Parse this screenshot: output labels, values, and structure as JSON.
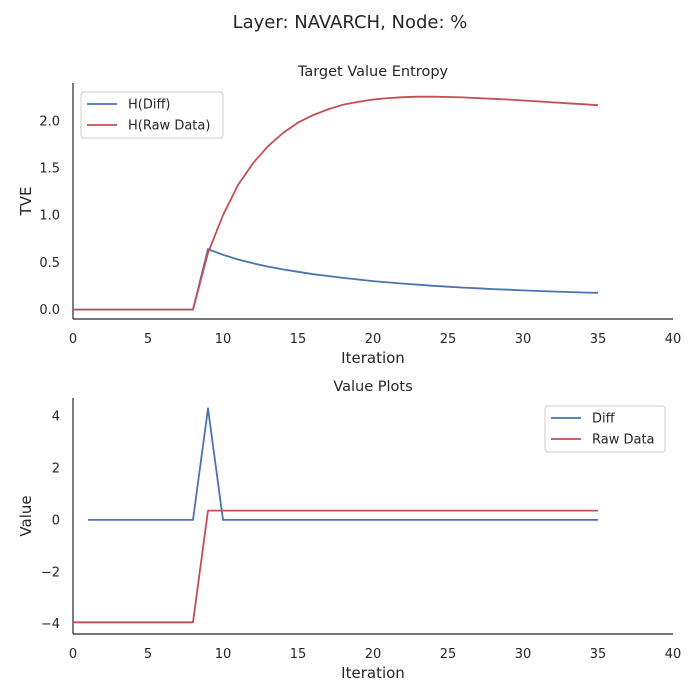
{
  "figure": {
    "suptitle": "Layer: NAVARCH, Node: %"
  },
  "colors": {
    "blue": "#4c72b0",
    "red": "#c44e52",
    "axis": "#262626"
  },
  "chart_data": [
    {
      "type": "line",
      "title": "Target Value Entropy",
      "xlabel": "Iteration",
      "ylabel": "TVE",
      "xlim": [
        0,
        40
      ],
      "ylim": [
        -0.1,
        2.4
      ],
      "xticks": [
        0,
        5,
        10,
        15,
        20,
        25,
        30,
        35,
        40
      ],
      "yticks": [
        0.0,
        0.5,
        1.0,
        1.5,
        2.0
      ],
      "ytick_labels": [
        "0.0",
        "0.5",
        "1.0",
        "1.5",
        "2.0"
      ],
      "grid": false,
      "legend_position": "top-left",
      "x": [
        0,
        1,
        2,
        3,
        4,
        5,
        6,
        7,
        8,
        9,
        10,
        11,
        12,
        13,
        14,
        15,
        16,
        17,
        18,
        19,
        20,
        21,
        22,
        23,
        24,
        25,
        26,
        27,
        28,
        29,
        30,
        31,
        32,
        33,
        34,
        35
      ],
      "series": [
        {
          "name": "H(Diff)",
          "color": "#4c72b0",
          "values": [
            0,
            0,
            0,
            0,
            0,
            0,
            0,
            0,
            0,
            0.64,
            0.58,
            0.53,
            0.49,
            0.455,
            0.425,
            0.4,
            0.375,
            0.355,
            0.335,
            0.318,
            0.302,
            0.288,
            0.275,
            0.263,
            0.252,
            0.242,
            0.233,
            0.225,
            0.217,
            0.21,
            0.203,
            0.197,
            0.191,
            0.186,
            0.181,
            0.176
          ]
        },
        {
          "name": "H(Raw Data)",
          "color": "#c44e52",
          "values": [
            0,
            0,
            0,
            0,
            0,
            0,
            0,
            0,
            0,
            0.6,
            1.0,
            1.32,
            1.55,
            1.73,
            1.87,
            1.98,
            2.06,
            2.12,
            2.17,
            2.2,
            2.225,
            2.24,
            2.25,
            2.255,
            2.255,
            2.252,
            2.247,
            2.24,
            2.233,
            2.225,
            2.215,
            2.205,
            2.195,
            2.185,
            2.175,
            2.165
          ]
        }
      ]
    },
    {
      "type": "line",
      "title": "Value Plots",
      "xlabel": "Iteration",
      "ylabel": "Value",
      "xlim": [
        0,
        40
      ],
      "ylim": [
        -4.4,
        4.7
      ],
      "xticks": [
        0,
        5,
        10,
        15,
        20,
        25,
        30,
        35,
        40
      ],
      "yticks": [
        -4,
        -2,
        0,
        2,
        4
      ],
      "ytick_labels": [
        "−4",
        "−2",
        "0",
        "2",
        "4"
      ],
      "grid": false,
      "legend_position": "top-right",
      "series": [
        {
          "name": "Diff",
          "color": "#4c72b0",
          "x": [
            1,
            8,
            9,
            10,
            35
          ],
          "values": [
            0,
            0,
            4.3,
            0,
            0
          ]
        },
        {
          "name": "Raw Data",
          "color": "#c44e52",
          "x": [
            0,
            8,
            9,
            35
          ],
          "values": [
            -3.95,
            -3.95,
            0.36,
            0.36
          ]
        }
      ]
    }
  ]
}
